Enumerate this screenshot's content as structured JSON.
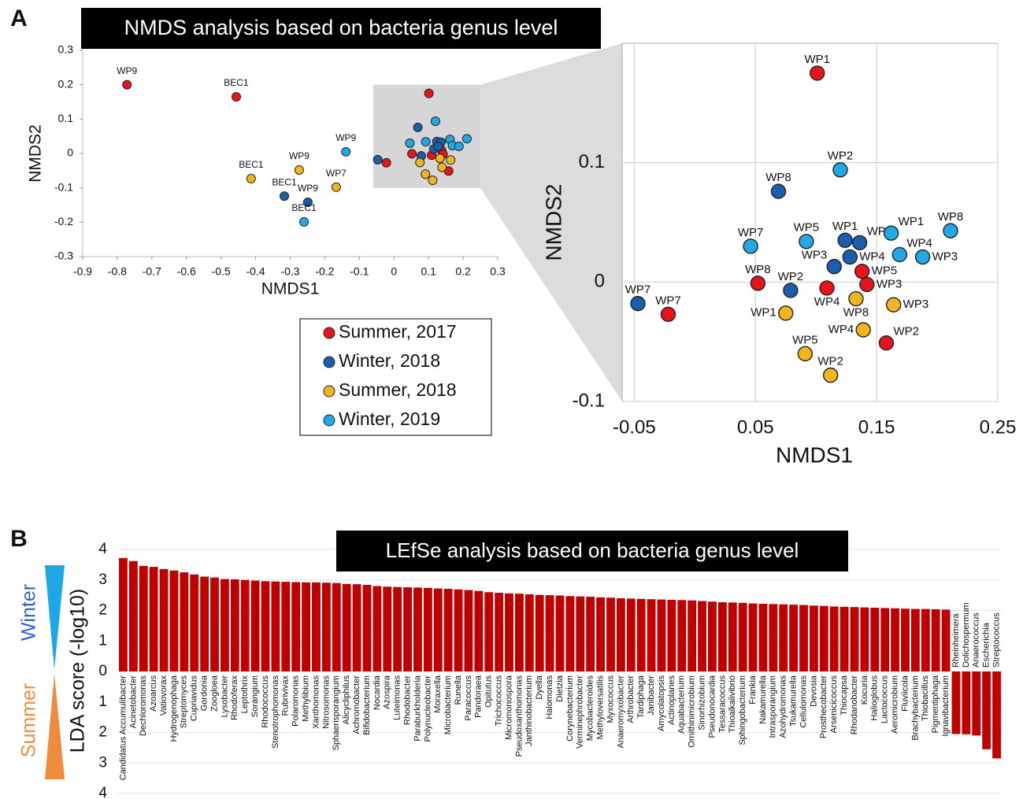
{
  "chart_data": [
    {
      "type": "scatter",
      "panel": "A",
      "title": "NMDS analysis based on bacteria genus level",
      "x_label": "NMDS1",
      "y_label": "NMDS2",
      "xlim": [
        -0.9,
        0.3
      ],
      "xticks": [
        -0.9,
        -0.8,
        -0.7,
        -0.6,
        -0.5,
        -0.4,
        -0.3,
        -0.2,
        -0.1,
        0,
        0.1,
        0.2,
        0.3
      ],
      "ylim": [
        -0.3,
        0.3
      ],
      "yticks": [
        -0.3,
        -0.2,
        -0.1,
        0,
        0.1,
        0.2,
        0.3
      ],
      "series": [
        {
          "name": "Summer, 2017",
          "color": "#e8141c",
          "x": [
            -0.772,
            -0.456,
            0.101,
            0.052,
            -0.022,
            0.109,
            0.138,
            0.142,
            0.158
          ],
          "values": [
            0.2,
            0.165,
            0.175,
            -0.001,
            -0.027,
            -0.005,
            0.009,
            -0.002,
            -0.051
          ],
          "labels": [
            "WP9",
            "BEC1",
            null,
            null,
            null,
            null,
            null,
            null,
            null
          ]
        },
        {
          "name": "Winter, 2018",
          "color": "#1a5fae",
          "x": [
            -0.317,
            -0.249,
            0.069,
            -0.047,
            0.124,
            0.136,
            0.115,
            0.128,
            0.079
          ],
          "values": [
            -0.124,
            -0.142,
            0.076,
            -0.018,
            0.035,
            0.033,
            0.013,
            0.021,
            -0.007
          ],
          "labels": [
            "BEC1",
            "WP9",
            null,
            null,
            null,
            null,
            null,
            null,
            null
          ]
        },
        {
          "name": "Summer, 2018",
          "color": "#f3b51e",
          "x": [
            -0.413,
            -0.274,
            -0.167,
            0.075,
            0.133,
            0.164,
            0.139,
            0.091,
            0.112
          ],
          "values": [
            -0.073,
            -0.048,
            -0.098,
            -0.026,
            -0.014,
            -0.019,
            -0.04,
            -0.06,
            -0.078
          ],
          "labels": [
            "BEC1",
            "WP9",
            "WP7",
            null,
            null,
            null,
            null,
            null,
            null
          ]
        },
        {
          "name": "Winter, 2019",
          "color": "#22a8e6",
          "x": [
            -0.139,
            -0.26,
            0.12,
            0.046,
            0.092,
            0.162,
            0.211,
            0.169,
            0.188
          ],
          "values": [
            0.005,
            -0.199,
            0.094,
            0.03,
            0.034,
            0.041,
            0.043,
            0.023,
            0.021
          ],
          "labels": [
            "WP9",
            "BEC1",
            null,
            null,
            null,
            null,
            null,
            null,
            null
          ]
        }
      ]
    },
    {
      "type": "scatter",
      "x_label": "NMDS1",
      "y_label": "NMDS2",
      "grid": true,
      "xlim": [
        -0.06,
        0.25
      ],
      "xticks": [
        -0.05,
        0.05,
        0.15,
        0.25
      ],
      "ylim": [
        -0.1,
        0.2
      ],
      "yticks": [
        -0.1,
        0,
        0.1
      ],
      "series": [
        {
          "color": "#e8141c",
          "x": [
            0.101,
            0.052,
            -0.022,
            0.109,
            0.138,
            0.142,
            0.158
          ],
          "values": [
            0.175,
            -0.001,
            -0.027,
            -0.005,
            0.009,
            -0.002,
            -0.051
          ],
          "labels": [
            "WP1",
            "WP8",
            "WP7",
            "WP4",
            "WP5",
            "WP3",
            "WP2"
          ]
        },
        {
          "color": "#1a5fae",
          "x": [
            0.069,
            -0.047,
            0.124,
            0.136,
            0.115,
            0.128,
            0.079
          ],
          "values": [
            0.076,
            -0.018,
            0.035,
            0.033,
            0.013,
            0.021,
            -0.007
          ],
          "labels": [
            "WP8",
            "WP7",
            "WP1",
            "WP5",
            "WP3",
            "WP4",
            "WP2"
          ]
        },
        {
          "color": "#f3b51e",
          "x": [
            0.075,
            0.133,
            0.164,
            0.139,
            0.091,
            0.112
          ],
          "values": [
            -0.026,
            -0.014,
            -0.019,
            -0.04,
            -0.06,
            -0.078
          ],
          "labels": [
            "WP1",
            "WP8",
            "WP3",
            "WP4",
            "WP5",
            "WP2"
          ]
        },
        {
          "color": "#22a8e6",
          "x": [
            0.12,
            0.046,
            0.092,
            0.162,
            0.211,
            0.169,
            0.188
          ],
          "values": [
            0.094,
            0.03,
            0.034,
            0.041,
            0.043,
            0.023,
            0.021
          ],
          "labels": [
            "WP2",
            "WP7",
            "WP5",
            "WP1",
            "WP8",
            "WP4",
            "WP3"
          ]
        }
      ]
    },
    {
      "type": "bar",
      "panel": "B",
      "title": "LEfSe analysis based on bacteria genus level",
      "y_label": "LDA score (-log10)",
      "annotations": [
        "Winter",
        "Summer"
      ],
      "color": "#c00000",
      "grid": true,
      "ylim": [
        -4,
        4
      ],
      "yticks": [
        4,
        3,
        2,
        1,
        0,
        {
          "value": -1,
          "label": "1"
        },
        {
          "value": -2,
          "label": "2"
        },
        {
          "value": -3,
          "label": "3"
        },
        {
          "value": -4,
          "label": "4"
        }
      ],
      "categories": [
        "Candidatus Accumulibacter",
        "Acinetobacter",
        "Dechloromonas",
        "Azoarcus",
        "Vatiovorax",
        "Hydrogenophaga",
        "Streptomyces",
        "Cupriavidus",
        "Gordonia",
        "Zoogloea",
        "Lysobacter",
        "Rhodoferax",
        "Leptothrix",
        "Sorangium",
        "Rhodococcus",
        "Stenotrophomonas",
        "Rubrivivax",
        "Polaromonas",
        "Methylibium",
        "Xanthomonas",
        "Nitrosomonas",
        "Sphaerisporangium",
        "Alicycliphilus",
        "Achromobacter",
        "Bifidobacterium",
        "Nocardia",
        "Azospira",
        "Luteimonas",
        "Rhodobacter",
        "Paraburkholderia",
        "Polynucleobacter",
        "Moraxella",
        "Microbacterium",
        "Runella",
        "Paracoccus",
        "Pandoraea",
        "Opitutus",
        "Trichococcus",
        "Micromonospora",
        "Pseudoxanthomonas",
        "Janthinobacterium",
        "Dyella",
        "Halomonas",
        "Dietzia",
        "Corynebacterium",
        "Verminephrobacter",
        "Mycobacteroides",
        "Methyloversatilis",
        "Myxococcus",
        "Anaeromyxobacter",
        "Arthrobacter",
        "Tardiphaga",
        "Janibacter",
        "Amycolatopsis",
        "Actinoplanes",
        "Aquabacterium",
        "Ornithinimicrobium",
        "Sinorhizobium",
        "Pseudonocardia",
        "Tessaracoccus",
        "Thioalkalivibrio",
        "Sphingobacterium",
        "Frankia",
        "Nakamurella",
        "Intrasporangium",
        "Azohydromonas",
        "Tsukamurella",
        "Cellulomonas",
        "Devosia",
        "Prosthecobacter",
        "Arsenicicoccus",
        "Thiocapsa",
        "Rhodanobacter",
        "Kocuria",
        "Halioglobus",
        "Lactococcus",
        "Aeromicrobium",
        "Fluviicola",
        "Brachybacterium",
        "Thiobacillus",
        "Pigmentiphaga",
        "Ignavibacterium",
        "Rheinheimera",
        "Dolichospermum",
        "Anaerococcus",
        "Escherichia",
        "Streptococcus"
      ],
      "values": [
        3.72,
        3.62,
        3.46,
        3.43,
        3.36,
        3.31,
        3.25,
        3.18,
        3.11,
        3.08,
        3.03,
        3.02,
        3.0,
        2.98,
        2.96,
        2.95,
        2.94,
        2.93,
        2.92,
        2.92,
        2.91,
        2.9,
        2.87,
        2.86,
        2.84,
        2.8,
        2.78,
        2.77,
        2.76,
        2.75,
        2.74,
        2.72,
        2.71,
        2.69,
        2.67,
        2.64,
        2.6,
        2.58,
        2.56,
        2.55,
        2.53,
        2.51,
        2.5,
        2.49,
        2.47,
        2.46,
        2.45,
        2.43,
        2.42,
        2.4,
        2.39,
        2.38,
        2.37,
        2.36,
        2.35,
        2.34,
        2.33,
        2.31,
        2.29,
        2.27,
        2.26,
        2.25,
        2.23,
        2.22,
        2.21,
        2.2,
        2.19,
        2.18,
        2.16,
        2.15,
        2.13,
        2.12,
        2.11,
        2.1,
        2.09,
        2.08,
        2.07,
        2.06,
        2.05,
        2.05,
        2.04,
        2.03,
        -2.05,
        -2.06,
        -2.1,
        -2.55,
        -2.85
      ]
    }
  ]
}
